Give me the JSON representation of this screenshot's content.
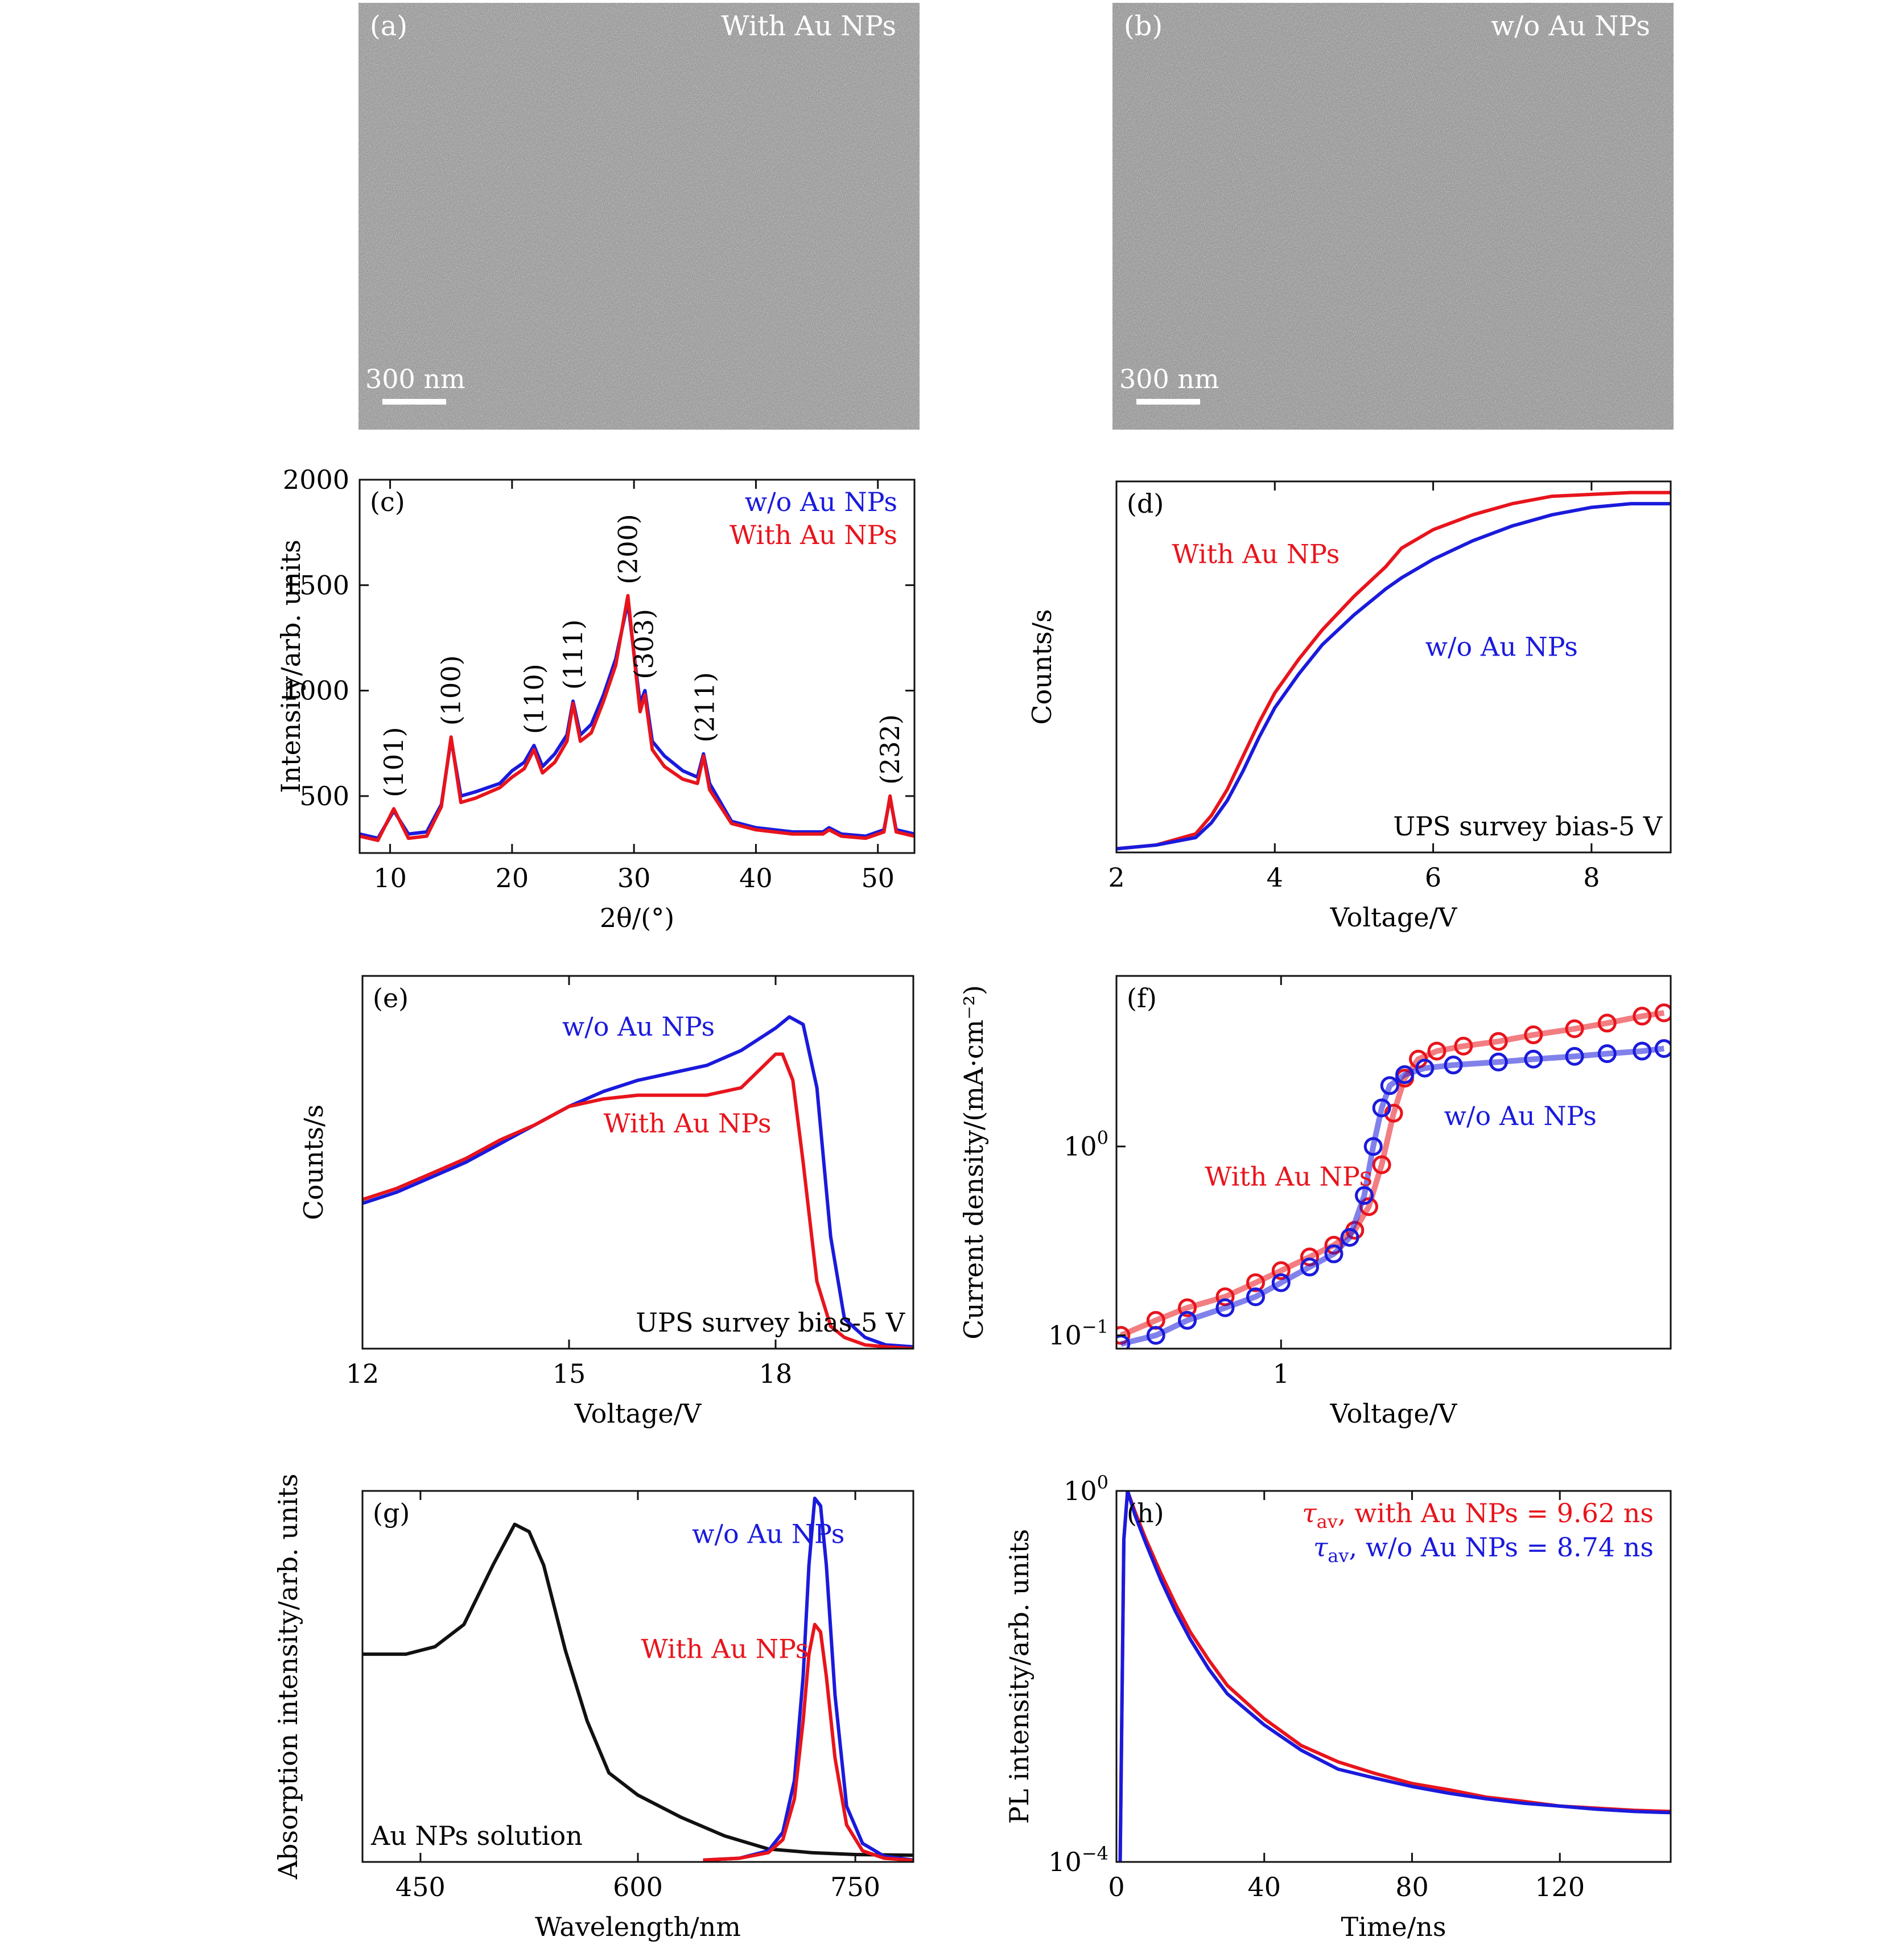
{
  "colors": {
    "red": "#e8141c",
    "blue": "#1a1adc",
    "black": "#111111",
    "sem_bg": "#8f8f8f"
  },
  "panels": {
    "a": {
      "letter": "(a)",
      "caption": "With Au NPs",
      "scalebar": "300 nm"
    },
    "b": {
      "letter": "(b)",
      "caption": "w/o Au NPs",
      "scalebar": "300 nm"
    }
  },
  "chart_data": [
    {
      "id": "c",
      "type": "line",
      "letter": "(c)",
      "xlabel": "2θ/(°)",
      "ylabel": "Intensity/arb. units",
      "xlim": [
        7.5,
        53
      ],
      "ylim": [
        230,
        2000
      ],
      "xticks": [
        10,
        20,
        30,
        40,
        50
      ],
      "yticks": [
        500,
        1000,
        1500,
        2000
      ],
      "legend": [
        "w/o Au NPs",
        "With Au NPs"
      ],
      "legend_position": "top-right",
      "peak_labels": [
        {
          "label": "(101)",
          "x": 10.3,
          "y": 440
        },
        {
          "label": "(100)",
          "x": 15.0,
          "y": 780
        },
        {
          "label": "(110)",
          "x": 21.8,
          "y": 740
        },
        {
          "label": "(111)",
          "x": 25.0,
          "y": 950
        },
        {
          "label": "(200)",
          "x": 29.5,
          "y": 1450
        },
        {
          "label": "(303)",
          "x": 30.8,
          "y": 1000
        },
        {
          "label": "(211)",
          "x": 35.8,
          "y": 700
        },
        {
          "label": "(232)",
          "x": 51.0,
          "y": 500
        }
      ],
      "series": [
        {
          "name": "w/o Au NPs",
          "color": "blue",
          "x": [
            7.5,
            9,
            10.3,
            11.5,
            13,
            14.2,
            15,
            15.8,
            17,
            19,
            20,
            21,
            21.8,
            22.5,
            23.5,
            24.5,
            25,
            25.6,
            26.5,
            27.5,
            28.5,
            29.5,
            30.2,
            30.5,
            30.9,
            31.5,
            32.5,
            34,
            35.2,
            35.7,
            36.2,
            38,
            40,
            43,
            45.5,
            46,
            47,
            49,
            50.5,
            51,
            51.5,
            53
          ],
          "y": [
            320,
            300,
            430,
            320,
            330,
            460,
            770,
            500,
            520,
            560,
            620,
            660,
            740,
            640,
            700,
            790,
            950,
            790,
            840,
            980,
            1150,
            1420,
            1080,
            940,
            1000,
            760,
            690,
            620,
            590,
            700,
            560,
            380,
            350,
            330,
            330,
            350,
            320,
            310,
            340,
            490,
            340,
            320
          ]
        },
        {
          "name": "With Au NPs",
          "color": "red",
          "x": [
            7.5,
            9,
            10.3,
            11.5,
            13,
            14.2,
            15,
            15.8,
            17,
            19,
            20,
            21,
            21.8,
            22.5,
            23.5,
            24.5,
            25,
            25.6,
            26.5,
            27.5,
            28.5,
            29.5,
            30.2,
            30.5,
            30.9,
            31.5,
            32.5,
            34,
            35.2,
            35.7,
            36.2,
            38,
            40,
            43,
            45.5,
            46,
            47,
            49,
            50.5,
            51,
            51.5,
            53
          ],
          "y": [
            310,
            290,
            440,
            300,
            310,
            450,
            780,
            470,
            490,
            540,
            590,
            630,
            720,
            610,
            660,
            760,
            940,
            760,
            800,
            950,
            1120,
            1450,
            1060,
            900,
            980,
            720,
            640,
            580,
            560,
            690,
            530,
            370,
            340,
            320,
            320,
            340,
            310,
            300,
            330,
            500,
            330,
            310
          ]
        }
      ]
    },
    {
      "id": "d",
      "type": "line",
      "letter": "(d)",
      "xlabel": "Voltage/V",
      "ylabel": "Counts/s",
      "xlim": [
        2,
        9
      ],
      "ylim": [
        0,
        1
      ],
      "xticks": [
        2,
        4,
        6,
        8
      ],
      "yticks": [],
      "annotation": "UPS survey bias-5 V",
      "series": [
        {
          "name": "With Au NPs",
          "color": "red",
          "x": [
            2,
            2.5,
            3,
            3.2,
            3.4,
            3.6,
            3.8,
            4,
            4.3,
            4.6,
            5,
            5.4,
            5.6,
            6,
            6.5,
            7,
            7.5,
            8,
            8.5,
            9
          ],
          "y": [
            0.01,
            0.02,
            0.05,
            0.1,
            0.17,
            0.26,
            0.35,
            0.43,
            0.52,
            0.6,
            0.69,
            0.77,
            0.82,
            0.87,
            0.91,
            0.94,
            0.96,
            0.965,
            0.97,
            0.97
          ]
        },
        {
          "name": "w/o Au NPs",
          "color": "blue",
          "x": [
            2,
            2.5,
            3,
            3.2,
            3.4,
            3.6,
            3.8,
            4,
            4.3,
            4.6,
            5,
            5.4,
            5.6,
            6,
            6.5,
            7,
            7.5,
            8,
            8.5,
            9
          ],
          "y": [
            0.01,
            0.02,
            0.04,
            0.08,
            0.14,
            0.22,
            0.31,
            0.39,
            0.48,
            0.56,
            0.64,
            0.71,
            0.74,
            0.79,
            0.84,
            0.88,
            0.91,
            0.93,
            0.94,
            0.94
          ]
        }
      ],
      "series_labels": [
        {
          "text": "With Au NPs",
          "color": "red"
        },
        {
          "text": "w/o Au NPs",
          "color": "blue"
        }
      ]
    },
    {
      "id": "e",
      "type": "line",
      "letter": "(e)",
      "xlabel": "Voltage/V",
      "ylabel": "Counts/s",
      "xlim": [
        12,
        20
      ],
      "ylim": [
        0,
        1
      ],
      "xticks": [
        12,
        15,
        18
      ],
      "yticks": [],
      "annotation": "UPS survey bias-5 V",
      "series": [
        {
          "name": "w/o Au NPs",
          "color": "blue",
          "x": [
            12,
            12.5,
            13,
            13.5,
            14,
            14.5,
            15,
            15.5,
            16,
            16.5,
            17,
            17.5,
            18,
            18.2,
            18.4,
            18.6,
            18.8,
            19,
            19.3,
            19.6,
            20
          ],
          "y": [
            0.39,
            0.42,
            0.46,
            0.5,
            0.55,
            0.6,
            0.65,
            0.69,
            0.72,
            0.74,
            0.76,
            0.8,
            0.86,
            0.89,
            0.87,
            0.7,
            0.3,
            0.08,
            0.03,
            0.01,
            0.005
          ]
        },
        {
          "name": "With Au NPs",
          "color": "red",
          "x": [
            12,
            12.5,
            13,
            13.5,
            14,
            14.5,
            15,
            15.5,
            16,
            16.5,
            17,
            17.5,
            18,
            18.1,
            18.25,
            18.4,
            18.6,
            18.8,
            19,
            19.3,
            19.6,
            20
          ],
          "y": [
            0.4,
            0.43,
            0.47,
            0.51,
            0.56,
            0.6,
            0.65,
            0.67,
            0.68,
            0.68,
            0.68,
            0.7,
            0.79,
            0.79,
            0.72,
            0.5,
            0.18,
            0.06,
            0.03,
            0.01,
            0.005,
            0.0
          ]
        }
      ],
      "series_labels": [
        {
          "text": "w/o Au NPs",
          "color": "blue"
        },
        {
          "text": "With Au NPs",
          "color": "red"
        }
      ]
    },
    {
      "id": "f",
      "type": "scatter",
      "letter": "(f)",
      "xlabel": "Voltage/V",
      "ylabel": "Current density/(mA·cm⁻²)",
      "xscale": "log",
      "yscale": "log",
      "xlim": [
        0.35,
        12
      ],
      "ylim": [
        0.085,
        8
      ],
      "xticks": [
        {
          "value": 1,
          "label": "1"
        }
      ],
      "yticks": [
        {
          "value": 0.1,
          "base": "10",
          "exp": "−1"
        },
        {
          "value": 1,
          "base": "10",
          "exp": "0"
        }
      ],
      "series": [
        {
          "name": "With Au NPs",
          "color": "red",
          "x": [
            0.36,
            0.45,
            0.55,
            0.7,
            0.85,
            1.0,
            1.2,
            1.4,
            1.6,
            1.75,
            1.9,
            2.05,
            2.2,
            2.4,
            2.7,
            3.2,
            4,
            5,
            6.5,
            8,
            10,
            11.5
          ],
          "y": [
            0.1,
            0.12,
            0.14,
            0.16,
            0.19,
            0.22,
            0.26,
            0.3,
            0.36,
            0.48,
            0.8,
            1.5,
            2.3,
            2.9,
            3.2,
            3.4,
            3.6,
            3.9,
            4.2,
            4.5,
            4.9,
            5.1
          ]
        },
        {
          "name": "w/o Au NPs",
          "color": "blue",
          "x": [
            0.36,
            0.45,
            0.55,
            0.7,
            0.85,
            1.0,
            1.2,
            1.4,
            1.55,
            1.7,
            1.8,
            1.9,
            2.0,
            2.2,
            2.5,
            3,
            4,
            5,
            6.5,
            8,
            10,
            11.5
          ],
          "y": [
            0.09,
            0.1,
            0.12,
            0.14,
            0.16,
            0.19,
            0.23,
            0.27,
            0.33,
            0.55,
            1.0,
            1.6,
            2.1,
            2.4,
            2.6,
            2.7,
            2.8,
            2.9,
            3.0,
            3.1,
            3.2,
            3.3
          ]
        }
      ],
      "series_labels": [
        {
          "text": "w/o Au NPs",
          "color": "blue"
        },
        {
          "text": "With Au NPs",
          "color": "red"
        }
      ]
    },
    {
      "id": "g",
      "type": "line",
      "letter": "(g)",
      "xlabel": "Wavelength/nm",
      "ylabel": "Absorption intensity/arb. units",
      "xlim": [
        410,
        790
      ],
      "ylim": [
        0,
        1
      ],
      "xticks": [
        450,
        600,
        750
      ],
      "yticks": [],
      "annotation": "Au NPs solution",
      "series": [
        {
          "name": "Au NPs solution",
          "color": "black",
          "x": [
            410,
            440,
            460,
            480,
            500,
            515,
            525,
            535,
            550,
            565,
            580,
            600,
            630,
            660,
            690,
            720,
            750,
            790
          ],
          "y": [
            0.56,
            0.56,
            0.58,
            0.64,
            0.8,
            0.91,
            0.89,
            0.8,
            0.57,
            0.38,
            0.24,
            0.18,
            0.12,
            0.07,
            0.035,
            0.025,
            0.02,
            0.018
          ]
        },
        {
          "name": "w/o Au NPs",
          "color": "blue",
          "x": [
            645,
            670,
            690,
            700,
            708,
            714,
            718,
            722,
            726,
            730,
            736,
            744,
            755,
            770,
            790
          ],
          "y": [
            0.005,
            0.01,
            0.03,
            0.08,
            0.22,
            0.5,
            0.8,
            0.98,
            0.96,
            0.8,
            0.45,
            0.15,
            0.05,
            0.015,
            0.005
          ]
        },
        {
          "name": "With Au NPs",
          "color": "red",
          "x": [
            645,
            670,
            690,
            700,
            708,
            714,
            718,
            722,
            726,
            730,
            736,
            744,
            755,
            770,
            790
          ],
          "y": [
            0.005,
            0.01,
            0.025,
            0.06,
            0.17,
            0.38,
            0.56,
            0.64,
            0.62,
            0.5,
            0.28,
            0.1,
            0.03,
            0.01,
            0.004
          ]
        }
      ],
      "series_labels": [
        {
          "text": "w/o Au NPs",
          "color": "blue"
        },
        {
          "text": "With Au NPs",
          "color": "red"
        }
      ]
    },
    {
      "id": "h",
      "type": "line",
      "letter": "(h)",
      "xlabel": "Time/ns",
      "ylabel": "PL intensity/arb. units",
      "yscale": "log",
      "xlim": [
        0,
        150
      ],
      "ylim": [
        0.0001,
        1
      ],
      "xticks": [
        0,
        40,
        80,
        120
      ],
      "yticks": [
        {
          "value": 0.0001,
          "base": "10",
          "exp": "−4"
        },
        {
          "value": 1,
          "base": "10",
          "exp": "0"
        }
      ],
      "legend": [
        {
          "text": "τ_av, with Au NPs = 9.62 ns",
          "color": "red"
        },
        {
          "text": "τ_av, w/o Au NPs = 8.74 ns",
          "color": "blue"
        }
      ],
      "legend_position": "top-right",
      "series": [
        {
          "name": "With Au NPs",
          "color": "red",
          "x": [
            1,
            2,
            3,
            5,
            8,
            12,
            16,
            20,
            25,
            30,
            40,
            50,
            60,
            70,
            80,
            90,
            100,
            110,
            120,
            130,
            140,
            150
          ],
          "y": [
            0.0001,
            0.3,
            1.0,
            0.6,
            0.3,
            0.13,
            0.06,
            0.03,
            0.015,
            0.008,
            0.0035,
            0.0018,
            0.0012,
            0.0009,
            0.0007,
            0.0006,
            0.0005,
            0.00045,
            0.0004,
            0.00038,
            0.00036,
            0.00035
          ]
        },
        {
          "name": "w/o Au NPs",
          "color": "blue",
          "x": [
            1,
            2,
            3,
            5,
            8,
            12,
            16,
            20,
            25,
            30,
            40,
            50,
            60,
            70,
            80,
            90,
            100,
            110,
            120,
            130,
            140,
            150
          ],
          "y": [
            0.0001,
            0.3,
            1.0,
            0.55,
            0.27,
            0.11,
            0.05,
            0.025,
            0.012,
            0.0065,
            0.003,
            0.0016,
            0.001,
            0.0008,
            0.00065,
            0.00055,
            0.00048,
            0.00043,
            0.0004,
            0.00037,
            0.00035,
            0.00034
          ]
        }
      ]
    }
  ]
}
